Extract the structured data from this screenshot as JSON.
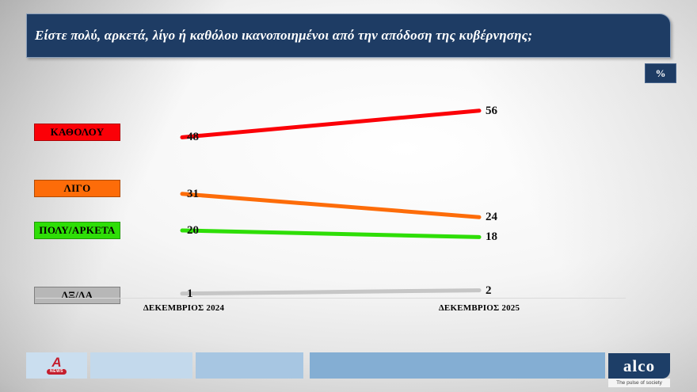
{
  "header": {
    "title": "Είστε πολύ, αρκετά, λίγο ή καθόλου ικανοποιημένοι από την απόδοση της κυβέρνησης;",
    "unit_badge": "%"
  },
  "chart_data": {
    "type": "line",
    "subtype": "slope",
    "title": "Είστε πολύ, αρκετά, λίγο ή καθόλου ικανοποιημένοι από την απόδοση της κυβέρνησης;",
    "unit": "%",
    "grid": false,
    "legend_position": "left",
    "ylim": [
      0,
      60
    ],
    "categories": [
      "ΔΕΚΕΜΒΡΙΟΣ 2024",
      "ΔΕΚΕΜΒΡΙΟΣ 2025"
    ],
    "series": [
      {
        "name": "ΚΑΘΟΛΟΥ",
        "values": [
          48,
          56
        ],
        "color": "#fb0007",
        "box_color": "#fb0007"
      },
      {
        "name": "ΛΙΓΟ",
        "values": [
          31,
          24
        ],
        "color": "#fd6c09",
        "box_color": "#fd6c09"
      },
      {
        "name": "ΠΟΛΥ/ΑΡΚΕΤΑ",
        "values": [
          20,
          18
        ],
        "color": "#2ede07",
        "box_color": "#2ede07"
      },
      {
        "name": "ΔΞ/ΔΑ",
        "values": [
          1,
          2
        ],
        "color": "#c6c6c6",
        "box_color": "#b7b7b7"
      }
    ]
  },
  "footer": {
    "alpha_a": "A",
    "alpha_news_label": "NEWS",
    "alco_logo": "alco",
    "alco_tagline": "The pulse of society"
  }
}
